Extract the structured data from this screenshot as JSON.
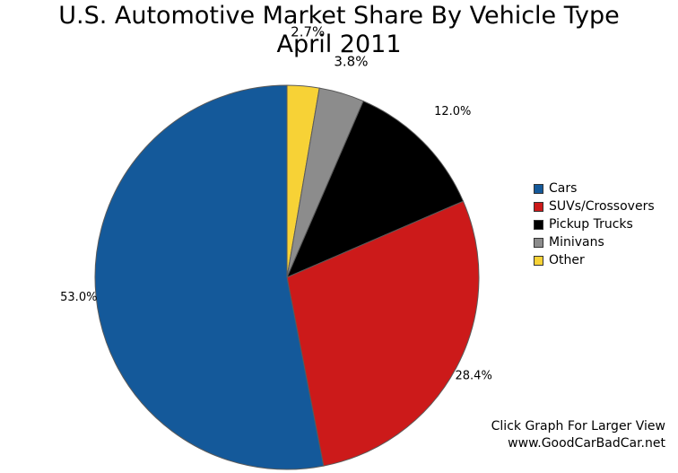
{
  "chart_data": {
    "type": "pie",
    "title": "U.S. Automotive Market Share By Vehicle Type",
    "subtitle": "April 2011",
    "categories": [
      "Cars",
      "SUVs/Crossovers",
      "Pickup Trucks",
      "Minivans",
      "Other"
    ],
    "values": [
      53.0,
      28.4,
      12.0,
      3.8,
      2.7
    ],
    "labels": [
      "53.0%",
      "28.4%",
      "12.0%",
      "3.8%",
      "2.7%"
    ],
    "colors": [
      "#14599a",
      "#cc1a1a",
      "#000000",
      "#8c8c8c",
      "#f7d236"
    ],
    "legend_position": "right"
  },
  "footer": {
    "line1": "Click Graph For Larger View",
    "line2": "www.GoodCarBadCar.net"
  }
}
